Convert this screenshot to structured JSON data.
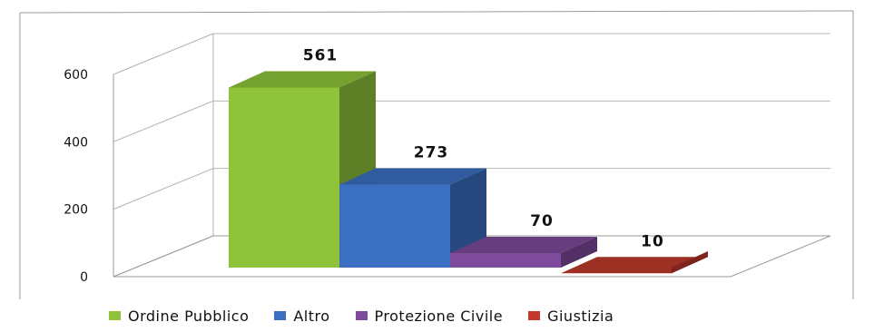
{
  "chart_data": {
    "type": "bar",
    "title": "",
    "xlabel": "",
    "ylabel": "",
    "ylim": [
      0,
      600
    ],
    "yticks": [
      "0",
      "200",
      "400",
      "600"
    ],
    "grid": true,
    "legend_position": "bottom",
    "three_d": true,
    "categories": [
      "Ordine Pubblico",
      "Altro",
      "Protezione Civile",
      "Giustizia"
    ],
    "values": [
      561,
      273,
      70,
      10
    ],
    "data_labels": [
      "561",
      "273",
      "70",
      "10"
    ],
    "colors": [
      "#8fc43a",
      "#3b6fc2",
      "#7e4a9c",
      "#c0392b"
    ]
  }
}
